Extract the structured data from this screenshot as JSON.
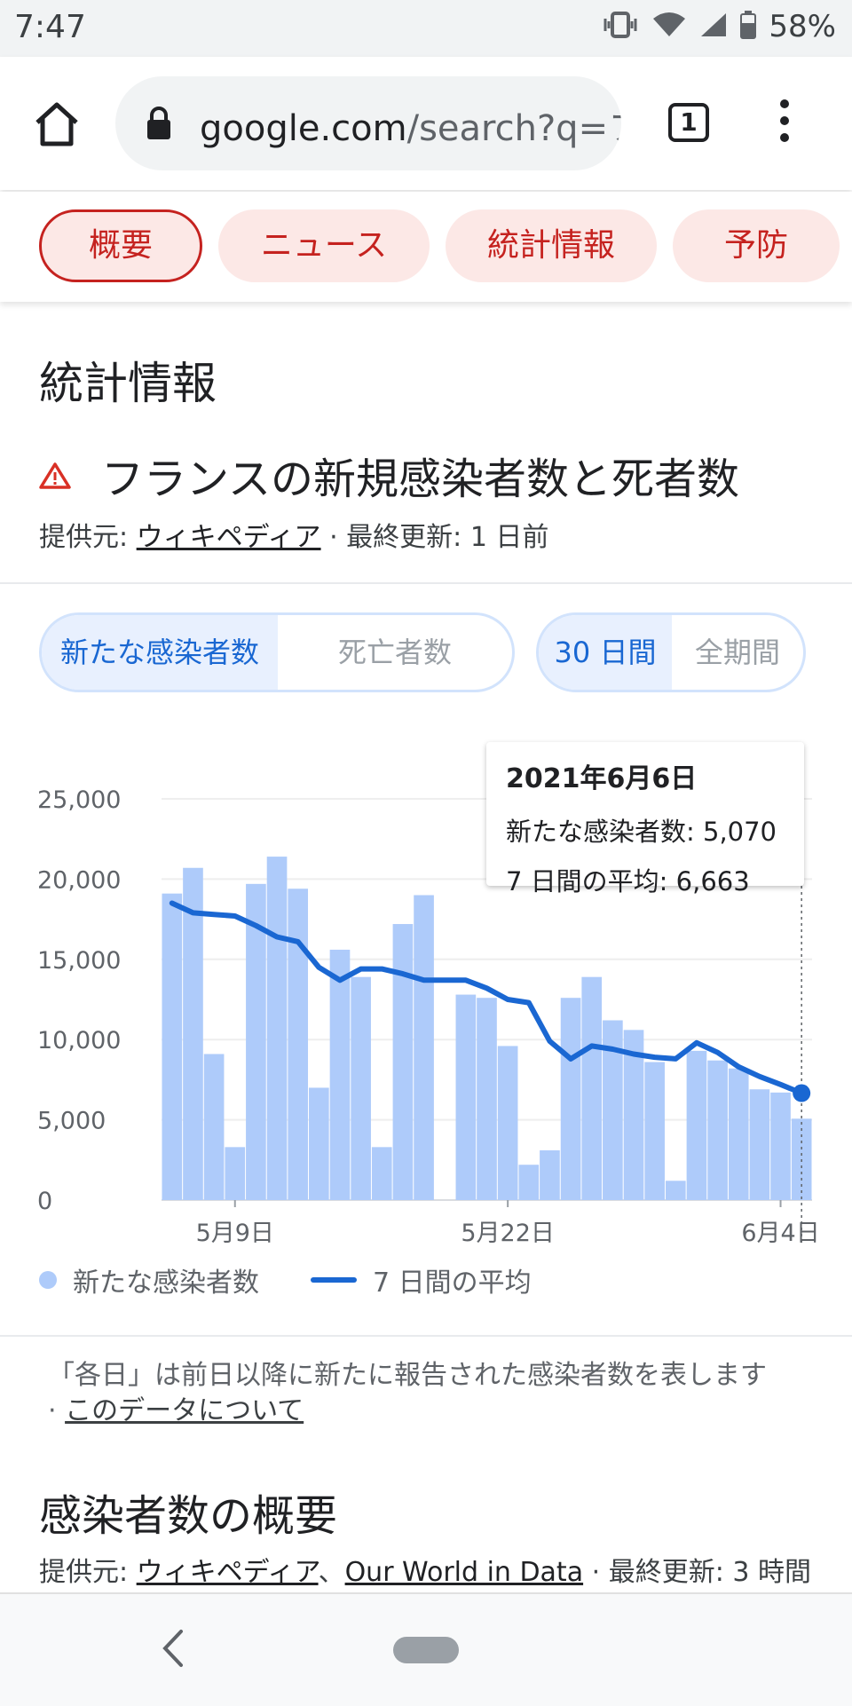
{
  "status_bar": {
    "time": "7:47",
    "battery": "58%"
  },
  "browser": {
    "url_host": "google.com",
    "url_path": "/search?q=フ",
    "tab_count": "1"
  },
  "chips": [
    "概要",
    "ニュース",
    "統計情報",
    "予防"
  ],
  "section_title": "統計情報",
  "chart_header": {
    "title": "フランスの新規感染者数と死者数",
    "source_prefix": "提供元: ",
    "source_link": "ウィキペディア",
    "updated": " · 最終更新: 1 日前"
  },
  "toggle_metric": {
    "options": [
      "新たな感染者数",
      "死亡者数"
    ],
    "selected": 0
  },
  "toggle_range": {
    "options": [
      "30 日間",
      "全期間"
    ],
    "selected": 0
  },
  "tooltip": {
    "date": "2021年6月6日",
    "cases_line": "新たな感染者数: 5,070",
    "avg_line": "7 日間の平均: 6,663"
  },
  "chart_data": {
    "type": "bar",
    "y_ticks": [
      "25,000",
      "20,000",
      "15,000",
      "10,000",
      "5,000",
      "0"
    ],
    "x_tick_labels": [
      "5月9日",
      "5月22日",
      "6月4日"
    ],
    "ylim": [
      0,
      25000
    ],
    "series": [
      {
        "name": "新たな感染者数",
        "type": "bar",
        "color": "#aecbfa",
        "values": [
          19100,
          20700,
          9100,
          3300,
          19700,
          21400,
          19400,
          7000,
          15600,
          13900,
          3300,
          17200,
          19000,
          0,
          12800,
          12600,
          9600,
          2200,
          3100,
          12600,
          13900,
          11200,
          10600,
          8600,
          1200,
          9300,
          8700,
          8200,
          6900,
          6700,
          5070
        ]
      },
      {
        "name": "7 日間の平均",
        "type": "line",
        "color": "#1a67d2",
        "values": [
          18500,
          17900,
          17800,
          17700,
          17100,
          16400,
          16100,
          14500,
          13700,
          14400,
          14400,
          14100,
          13700,
          13700,
          13700,
          13200,
          12500,
          12300,
          9900,
          8800,
          9600,
          9400,
          9100,
          8900,
          8800,
          9800,
          9200,
          8300,
          7700,
          7200,
          6663
        ]
      }
    ],
    "grid": true,
    "legend_position": "bottom-left"
  },
  "legend": {
    "bars": "新たな感染者数",
    "line": "7 日間の平均"
  },
  "footnote": {
    "text": "「各日」は前日以降に新たに報告された感染者数を表します",
    "link": "このデータについて"
  },
  "summary": {
    "title": "感染者数の概要",
    "source_prefix": "提供元: ",
    "source_link1": "ウィキペディア",
    "separator": "、",
    "source_link2": "Our World in Data",
    "updated": " · 最終更新: 3 時間"
  }
}
